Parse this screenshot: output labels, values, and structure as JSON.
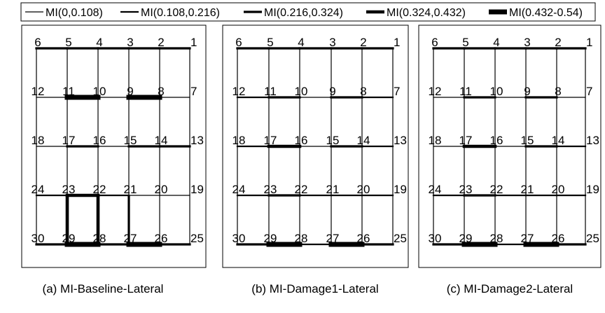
{
  "legend": {
    "items": [
      {
        "label": "MI(0,0.108)",
        "level": 1
      },
      {
        "label": "MI(0.108,0.216)",
        "level": 2
      },
      {
        "label": "MI(0.216,0.324)",
        "level": 3
      },
      {
        "label": "MI(0.324,0.432)",
        "level": 4
      },
      {
        "label": "MI(0.432-0.54)",
        "level": 5
      }
    ]
  },
  "node_rows": [
    [
      "6",
      "5",
      "4",
      "3",
      "2",
      "1"
    ],
    [
      "12",
      "11",
      "10",
      "9",
      "8",
      "7"
    ],
    [
      "18",
      "17",
      "16",
      "15",
      "14",
      "13"
    ],
    [
      "24",
      "23",
      "22",
      "21",
      "20",
      "19"
    ],
    [
      "30",
      "29",
      "28",
      "27",
      "26",
      "25"
    ]
  ],
  "panels": [
    {
      "caption": "(a) MI-Baseline-Lateral",
      "beams": [
        [
          3,
          3,
          3,
          3,
          3
        ],
        [
          1,
          5,
          1,
          5,
          1
        ],
        [
          1,
          3,
          1,
          3,
          3
        ],
        [
          2,
          4,
          2,
          1,
          1
        ],
        [
          3,
          5,
          3,
          5,
          3
        ]
      ],
      "columns": [
        [
          1,
          1,
          1,
          1,
          1,
          1
        ],
        [
          1,
          1,
          1,
          1,
          1,
          1
        ],
        [
          1,
          1,
          1,
          1,
          1,
          1
        ],
        [
          1,
          4,
          4,
          3,
          1,
          1
        ]
      ]
    },
    {
      "caption": "(b) MI-Damage1-Lateral",
      "beams": [
        [
          3,
          3,
          3,
          3,
          3
        ],
        [
          2,
          3,
          1,
          3,
          2
        ],
        [
          2,
          4,
          1,
          3,
          2
        ],
        [
          2,
          3,
          2,
          2,
          2
        ],
        [
          3,
          5,
          2,
          5,
          3
        ]
      ],
      "columns": [
        [
          1,
          1,
          1,
          1,
          1,
          1
        ],
        [
          1,
          1,
          1,
          1,
          1,
          1
        ],
        [
          1,
          1,
          1,
          1,
          1,
          1
        ],
        [
          1,
          1,
          1,
          1,
          1,
          1
        ]
      ]
    },
    {
      "caption": "(c) MI-Damage2-Lateral",
      "beams": [
        [
          3,
          3,
          3,
          3,
          3
        ],
        [
          1,
          3,
          1,
          3,
          1
        ],
        [
          1,
          4,
          1,
          3,
          2
        ],
        [
          2,
          3,
          2,
          2,
          2
        ],
        [
          3,
          5,
          2,
          5,
          3
        ]
      ],
      "columns": [
        [
          1,
          1,
          1,
          1,
          1,
          1
        ],
        [
          1,
          1,
          1,
          1,
          1,
          1
        ],
        [
          1,
          1,
          1,
          1,
          1,
          1
        ],
        [
          1,
          1,
          1,
          1,
          1,
          1
        ]
      ]
    }
  ]
}
